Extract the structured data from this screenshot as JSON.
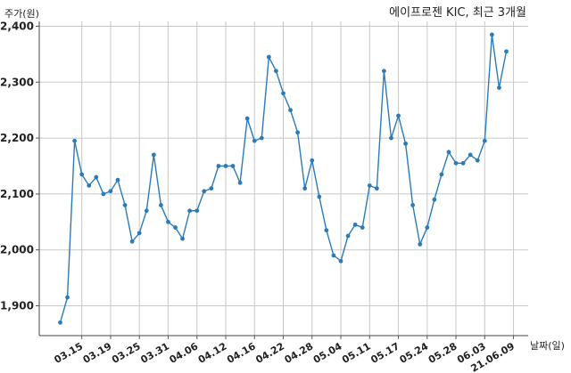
{
  "chart_data": {
    "type": "line",
    "title": "에이프로젠 KIC, 최근 3개월",
    "xlabel": "날짜(일)",
    "ylabel": "주가(원)",
    "ylim": [
      1840,
      2410
    ],
    "yticks": [
      1900,
      2000,
      2100,
      2200,
      2300,
      2400
    ],
    "ytick_labels": [
      "1,900",
      "2,000",
      "2,100",
      "2,200",
      "2,300",
      "2,400"
    ],
    "xtick_labels": [
      "03.15",
      "03.19",
      "03.25",
      "03.31",
      "04.06",
      "04.12",
      "04.16",
      "04.22",
      "04.28",
      "05.04",
      "05.11",
      "05.17",
      "05.24",
      "05.28",
      "06.03",
      "21.06.09"
    ],
    "xtick_index": [
      3,
      7,
      11,
      15,
      19,
      23,
      27,
      31,
      35,
      39,
      43,
      47,
      51,
      55,
      59,
      63
    ],
    "grid": true,
    "line_color": "#2b7bb9",
    "series": [
      {
        "values": [
          1870,
          1915,
          2195,
          2135,
          2115,
          2130,
          2100,
          2105,
          2125,
          2080,
          2015,
          2030,
          2070,
          2170,
          2080,
          2050,
          2040,
          2020,
          2070,
          2070,
          2105,
          2110,
          2150,
          2150,
          2150,
          2120,
          2235,
          2195,
          2200,
          2345,
          2320,
          2280,
          2250,
          2210,
          2110,
          2160,
          2095,
          2035,
          1990,
          1980,
          2025,
          2045,
          2040,
          2115,
          2110,
          2320,
          2200,
          2240,
          2190,
          2080,
          2010,
          2040,
          2090,
          2135,
          2175,
          2155,
          2155,
          2170,
          2160,
          2195,
          2385,
          2290,
          2355
        ]
      }
    ]
  }
}
